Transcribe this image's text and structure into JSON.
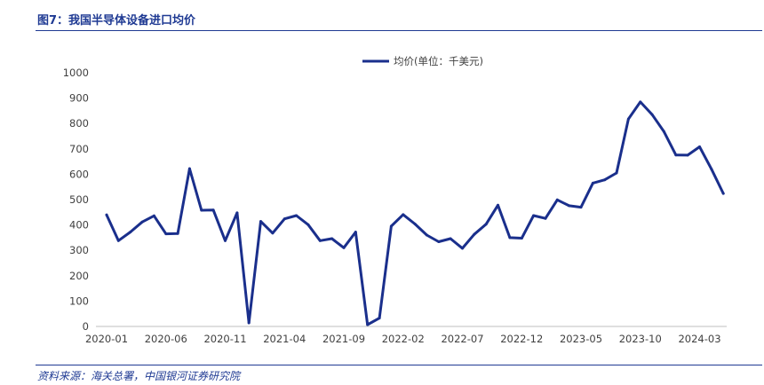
{
  "figure": {
    "title": "图7：我国半导体设备进口均价",
    "source": "资料来源：海关总署，中国银河证券研究院"
  },
  "chart_data": {
    "type": "line",
    "legend": "均价(单位：千美元)",
    "legend_position": "top",
    "ylim": [
      0,
      1000
    ],
    "yticks": [
      0,
      100,
      200,
      300,
      400,
      500,
      600,
      700,
      800,
      900,
      1000
    ],
    "grid": false,
    "x_tick_labels": [
      "2020-01",
      "2020-06",
      "2020-11",
      "2021-04",
      "2021-09",
      "2022-02",
      "2022-07",
      "2022-12",
      "2023-05",
      "2023-10",
      "2024-03"
    ],
    "x": [
      "2020-01",
      "2020-02",
      "2020-03",
      "2020-04",
      "2020-05",
      "2020-06",
      "2020-07",
      "2020-08",
      "2020-09",
      "2020-10",
      "2020-11",
      "2020-12",
      "2021-01",
      "2021-02",
      "2021-03",
      "2021-04",
      "2021-05",
      "2021-06",
      "2021-07",
      "2021-08",
      "2021-09",
      "2021-10",
      "2021-11",
      "2021-12",
      "2022-01",
      "2022-02",
      "2022-03",
      "2022-04",
      "2022-05",
      "2022-06",
      "2022-07",
      "2022-08",
      "2022-09",
      "2022-10",
      "2022-11",
      "2022-12",
      "2023-01",
      "2023-02",
      "2023-03",
      "2023-04",
      "2023-05",
      "2023-06",
      "2023-07",
      "2023-08",
      "2023-09",
      "2023-10",
      "2023-11",
      "2023-12",
      "2024-01",
      "2024-02",
      "2024-03",
      "2024-04",
      "2024-05"
    ],
    "series": [
      {
        "name": "均价(单位：千美元)",
        "color": "#1a2f8c",
        "values": [
          440,
          338,
          372,
          412,
          436,
          365,
          366,
          622,
          458,
          459,
          338,
          448,
          14,
          414,
          368,
          424,
          437,
          401,
          338,
          346,
          310,
          372,
          7,
          33,
          395,
          441,
          404,
          360,
          334,
          346,
          308,
          363,
          403,
          478,
          350,
          348,
          437,
          426,
          499,
          476,
          470,
          565,
          578,
          605,
          818,
          885,
          835,
          768,
          676,
          675,
          708,
          620,
          524
        ]
      }
    ]
  }
}
